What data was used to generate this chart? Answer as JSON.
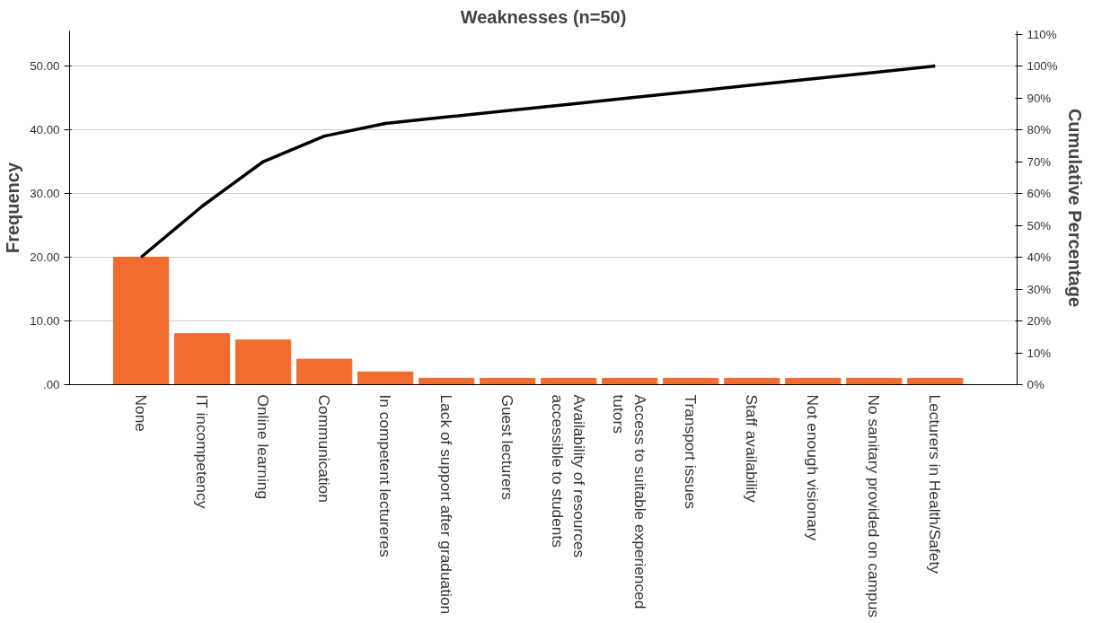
{
  "chart_data": {
    "type": "bar",
    "title": "Weaknesses (n=50)",
    "ylabel": "Frequency",
    "y2label": "Cumulative Percentage",
    "categories": [
      "None",
      "IT incompetency",
      "Online learning",
      "Communication",
      "In competent lectureres",
      "Lack of support after graduation",
      "Guest lecturers",
      "Availability of resources accessible to students",
      "Access to suitable experienced tutors",
      "Transport issues",
      "Staff availability",
      "Not enough visionary",
      "No sanitary provided on campus",
      "Lecturers in Health/Safety"
    ],
    "series": [
      {
        "color": "#f26b2f",
        "values": [
          20,
          8,
          7,
          4,
          2,
          1,
          1,
          1,
          1,
          1,
          1,
          1,
          1,
          1
        ]
      },
      {
        "type": "line",
        "axis": "y2",
        "color": "#000000",
        "values": [
          40,
          56,
          70,
          78,
          82,
          84,
          86,
          88,
          90,
          92,
          94,
          96,
          98,
          100
        ]
      }
    ],
    "ylim": [
      0,
      55.5
    ],
    "yticks": [
      {
        "value": 0,
        "label": ".00"
      },
      {
        "value": 10,
        "label": "10.00"
      },
      {
        "value": 20,
        "label": "20.00"
      },
      {
        "value": 30,
        "label": "30.00"
      },
      {
        "value": 40,
        "label": "40.00"
      },
      {
        "value": 50,
        "label": "50.00"
      }
    ],
    "y2lim": [
      0,
      111
    ],
    "y2ticks": [
      {
        "value": 0,
        "label": "0%"
      },
      {
        "value": 10,
        "label": "10%"
      },
      {
        "value": 20,
        "label": "20%"
      },
      {
        "value": 30,
        "label": "30%"
      },
      {
        "value": 40,
        "label": "40%"
      },
      {
        "value": 50,
        "label": "50%"
      },
      {
        "value": 60,
        "label": "60%"
      },
      {
        "value": 70,
        "label": "70%"
      },
      {
        "value": 80,
        "label": "80%"
      },
      {
        "value": 90,
        "label": "90%"
      },
      {
        "value": 100,
        "label": "100%"
      },
      {
        "value": 110,
        "label": "110%"
      }
    ],
    "grid": "y",
    "marker": "none",
    "line_style": "solid"
  }
}
